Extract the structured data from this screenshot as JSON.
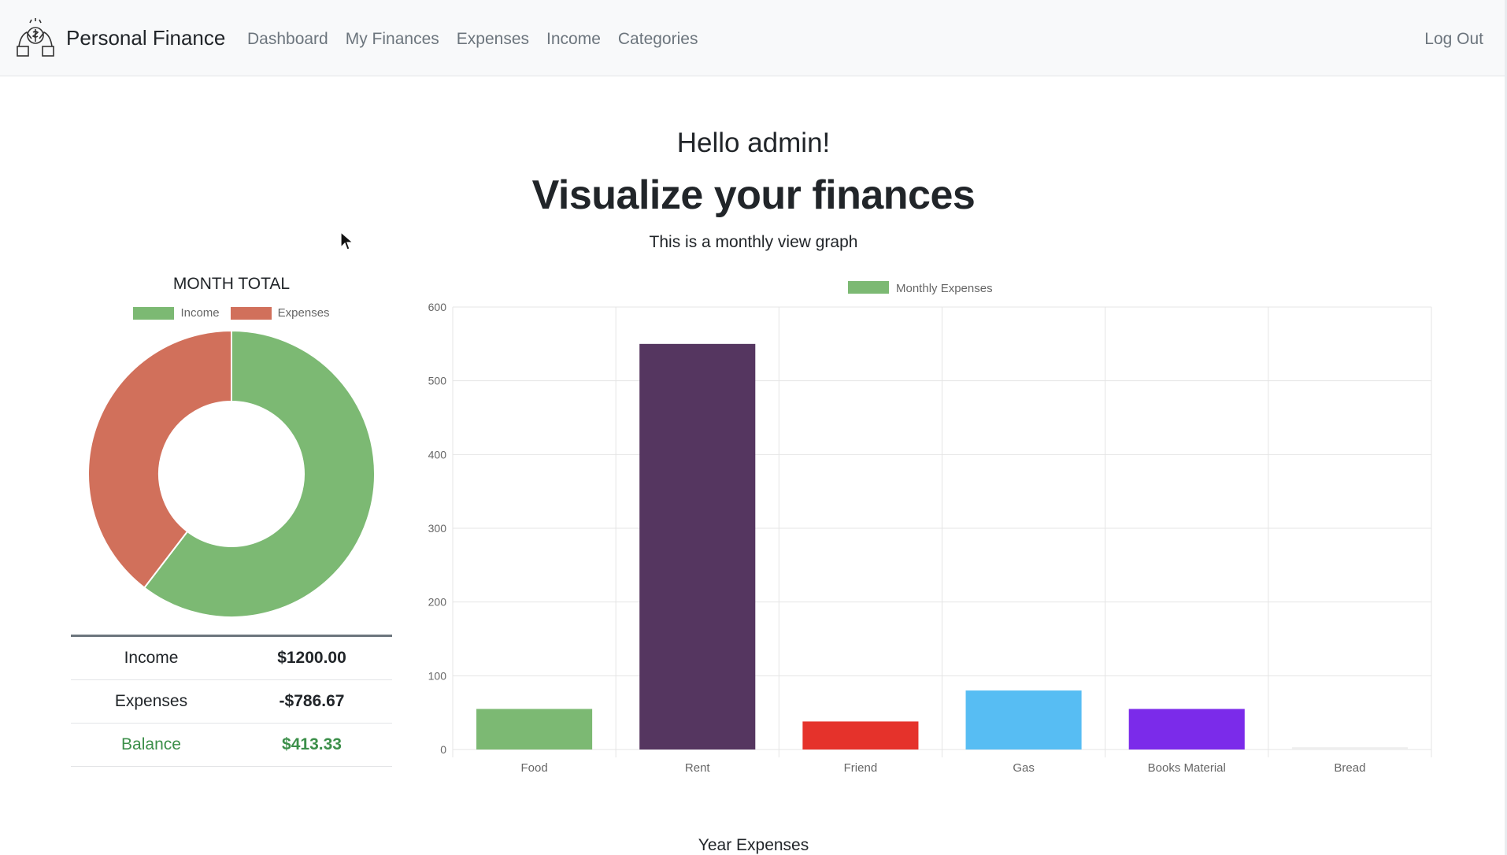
{
  "navbar": {
    "brand": "Personal Finance",
    "brand_icon": "money-hands-icon",
    "links": [
      "Dashboard",
      "My Finances",
      "Expenses",
      "Income",
      "Categories"
    ],
    "logout": "Log Out"
  },
  "header": {
    "greeting": "Hello admin!",
    "title": "Visualize your finances",
    "subtitle": "This is a monthly view graph"
  },
  "month_total": {
    "title": "MONTH TOTAL",
    "legend": [
      {
        "label": "Income",
        "color": "#7cb973"
      },
      {
        "label": "Expenses",
        "color": "#d1705b"
      }
    ]
  },
  "summary": {
    "rows": [
      {
        "label": "Income",
        "value": "$1200.00"
      },
      {
        "label": "Expenses",
        "value": "-$786.67"
      },
      {
        "label": "Balance",
        "value": "$413.33"
      }
    ]
  },
  "footer": {
    "year_expenses": "Year Expenses"
  },
  "chart_data": [
    {
      "type": "pie",
      "title": "MONTH TOTAL",
      "categories": [
        "Income",
        "Expenses"
      ],
      "values": [
        1200.0,
        786.67
      ],
      "colors": [
        "#7cb973",
        "#d1705b"
      ],
      "legend": "top"
    },
    {
      "type": "bar",
      "categories": [
        "Food",
        "Rent",
        "Friend",
        "Gas",
        "Books Material",
        "Bread"
      ],
      "series": [
        {
          "name": "Monthly Expenses",
          "values": [
            55,
            550,
            38,
            80,
            55,
            3
          ]
        }
      ],
      "colors": [
        "#7cb973",
        "#553660",
        "#e5322b",
        "#57bdf3",
        "#7b2bea",
        "#eeeeee"
      ],
      "legend_color": "#7cb973",
      "ylim": [
        0,
        600
      ],
      "yticks": [
        0,
        100,
        200,
        300,
        400,
        500,
        600
      ],
      "grid": true,
      "legend": "top"
    }
  ]
}
